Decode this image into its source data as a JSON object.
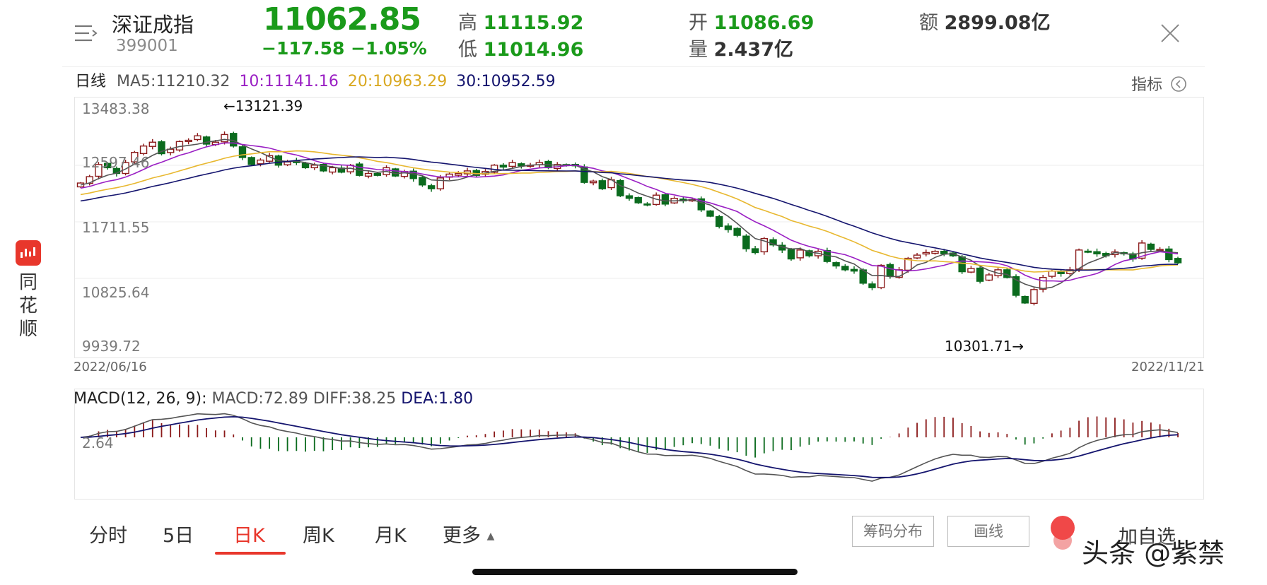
{
  "header": {
    "name": "深证成指",
    "code": "399001",
    "price": "11062.85",
    "change": "−117.58  −1.05%",
    "high_label": "高",
    "high": "11115.92",
    "low_label": "低",
    "low": "11014.96",
    "open_label": "开",
    "open": "11086.69",
    "volume_label": "量",
    "volume": "2.437亿",
    "amount_label": "额",
    "amount": "2899.08亿"
  },
  "ma_legend": {
    "period": "日线",
    "ma5": "MA5:11210.32",
    "ma10": "10:11141.16",
    "ma20": "20:10963.29",
    "ma30": "30:10952.59"
  },
  "indicator_label": "指标",
  "colors": {
    "up": "#8b1a1a",
    "down": "#0b6b1e",
    "ma5": "#555555",
    "ma10": "#9a1fc4",
    "ma20": "#e8b830",
    "ma30": "#14146e",
    "price_green": "#1a9a1a",
    "accent_red": "#e8372c"
  },
  "chart_data": [
    {
      "type": "candlestick",
      "y_ticks": [
        "13483.38",
        "12597.46",
        "11711.55",
        "10825.64",
        "9939.72"
      ],
      "ylim": [
        9939.72,
        13483.38
      ],
      "x_start": "2022/06/16",
      "x_end": "2022/11/21",
      "max_annotation": "←13121.39",
      "min_annotation": "10301.71→",
      "closes": [
        12320,
        12420,
        12610,
        12560,
        12470,
        12640,
        12800,
        12900,
        12960,
        12780,
        12850,
        12970,
        12990,
        13060,
        12930,
        12960,
        13080,
        12900,
        12720,
        12610,
        12680,
        12750,
        12600,
        12650,
        12640,
        12560,
        12600,
        12510,
        12560,
        12490,
        12600,
        12440,
        12470,
        12440,
        12560,
        12430,
        12500,
        12390,
        12290,
        12230,
        12400,
        12460,
        12470,
        12510,
        12440,
        12500,
        12600,
        12570,
        12640,
        12590,
        12600,
        12640,
        12560,
        12610,
        12600,
        12590,
        12330,
        12350,
        12230,
        12370,
        12120,
        12080,
        12010,
        11990,
        12130,
        11990,
        12080,
        12040,
        12060,
        11900,
        11800,
        11640,
        11590,
        11500,
        11290,
        11230,
        11450,
        11350,
        11270,
        11130,
        11270,
        11180,
        11250,
        11090,
        11020,
        10960,
        10940,
        10750,
        10680,
        11030,
        10860,
        10960,
        11140,
        11190,
        11230,
        11250,
        11210,
        11180,
        10930,
        10980,
        10780,
        10880,
        10960,
        10840,
        10560,
        10440,
        10650,
        10840,
        10940,
        10900,
        10960,
        11270,
        11250,
        11210,
        11180,
        11240,
        11210,
        11130,
        11380,
        11280,
        11280,
        11120,
        11070
      ]
    },
    {
      "type": "bar+line",
      "title": "MACD(12, 26, 9):",
      "macd_value": "MACD:72.89",
      "diff_value": "DIFF:38.25",
      "dea_value": "DEA:1.80",
      "zero_label": "2.64"
    }
  ],
  "tabs": [
    "分时",
    "5日",
    "日K",
    "周K",
    "月K",
    "更多"
  ],
  "active_tab": "日K",
  "buttons": {
    "chips": "筹码分布",
    "draw": "画线",
    "add_fav": "加自选"
  },
  "brand": {
    "name_line1": "同",
    "name_line2": "花",
    "name_line3": "顺"
  },
  "watermark": "头条 @紫禁"
}
